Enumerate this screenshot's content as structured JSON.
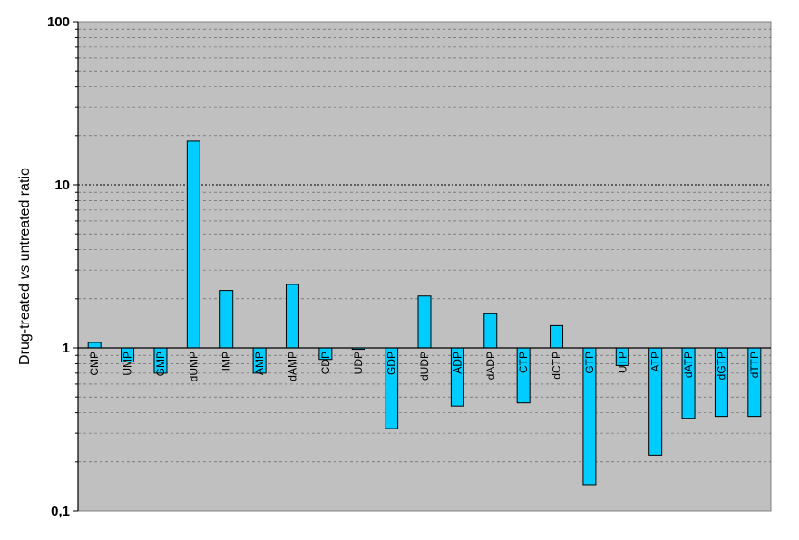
{
  "chart_data": {
    "type": "bar",
    "ylabel_parts": [
      "Drug-treated ",
      "vs",
      " untreated ratio"
    ],
    "y_scale": "log",
    "ylim": [
      0.1,
      100
    ],
    "yticks": [
      {
        "value": 100,
        "label": "100"
      },
      {
        "value": 10,
        "label": "10"
      },
      {
        "value": 1,
        "label": "1"
      },
      {
        "value": 0.1,
        "label": "0,1"
      }
    ],
    "baseline": 1,
    "grid": true,
    "legend": "none",
    "categories": [
      "CMP",
      "UMP",
      "GMP",
      "dUMP",
      "IMP",
      "AMP",
      "dAMP",
      "CDP",
      "UDP",
      "GDP",
      "dUDP",
      "ADP",
      "dADP",
      "CTP",
      "dCTP",
      "GTP",
      "UTP",
      "ATP",
      "dATP",
      "dGTP",
      "dTTP"
    ],
    "values": [
      1.08,
      0.82,
      0.7,
      18.5,
      2.25,
      0.7,
      2.45,
      0.85,
      0.98,
      0.32,
      2.08,
      0.44,
      1.62,
      0.46,
      1.37,
      0.145,
      0.78,
      0.22,
      0.37,
      0.38,
      0.38
    ],
    "colors": {
      "plot_bg": "#c0c0c0",
      "bar_fill": "#00ccff",
      "bar_stroke": "#000000",
      "grid": "#000000"
    }
  }
}
